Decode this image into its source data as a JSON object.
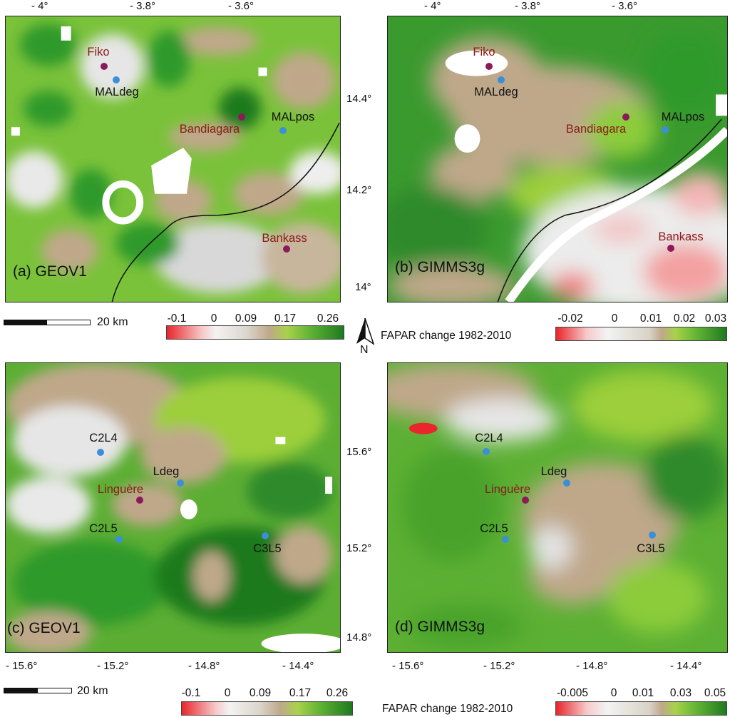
{
  "panels": {
    "a": {
      "label": "(a) GEOV1"
    },
    "b": {
      "label": "(b) GIMMS3g"
    },
    "c": {
      "label": "(c) GEOV1"
    },
    "d": {
      "label": "(d) GIMMS3g"
    }
  },
  "top_x_ticks": [
    "- 4°",
    "- 3.8°",
    "- 3.6°"
  ],
  "top_y_ticks": [
    "14.4°",
    "14.2°",
    "14°"
  ],
  "bottom_x_ticks": [
    "- 15.6°",
    "- 15.2°",
    "- 14.8°",
    "- 14.4°"
  ],
  "bottom_y_ticks": [
    "15.6°",
    "15.2°",
    "14.8°"
  ],
  "sites_top": {
    "towns": [
      "Fiko",
      "Bandiagara",
      "Bankass"
    ],
    "stations": [
      "MALdeg",
      "MALpos"
    ]
  },
  "sites_bottom": {
    "towns": [
      "Linguère"
    ],
    "stations": [
      "C2L4",
      "Ldeg",
      "C2L5",
      "C3L5"
    ]
  },
  "scale_bar": {
    "label": "20  km"
  },
  "north_arrow": {
    "label": "N"
  },
  "legends": {
    "geov1_top": [
      "-0.1",
      "0",
      "0.09",
      "0.17",
      "0.26"
    ],
    "gimms_top": [
      "-0.02",
      "0",
      "0.01",
      "0.02",
      "0.03"
    ],
    "geov1_bottom": [
      "-0.1",
      "0",
      "0.09",
      "0.17",
      "0.26"
    ],
    "gimms_bottom": [
      "-0.005",
      "0",
      "0.01",
      "0.03",
      "0.05"
    ],
    "title": "FAPAR change 1982-2010"
  },
  "colors": {
    "red": "#e8262b",
    "white": "#f4f4f4",
    "tan": "#bfa88a",
    "lightgreen": "#8ccc3a",
    "green": "#2f9a2a",
    "darkgreen": "#1f7a1f",
    "town": "#8b1a5a",
    "station": "#3b8fd8"
  }
}
